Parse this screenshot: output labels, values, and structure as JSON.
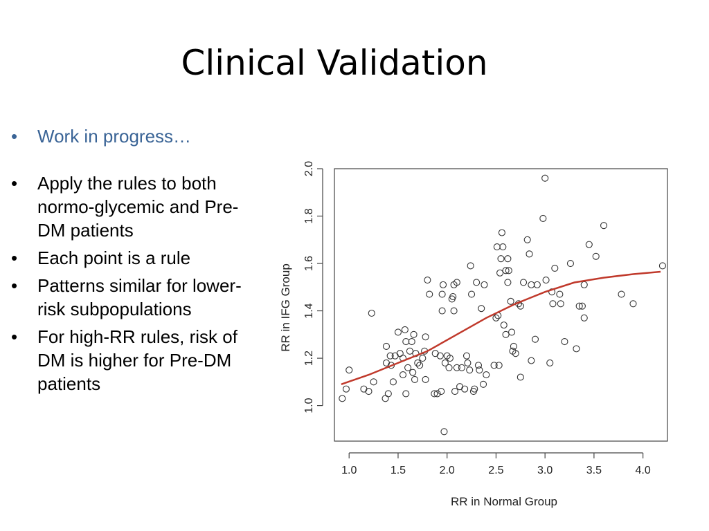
{
  "slide": {
    "title": "Clinical Validation",
    "bullets": [
      "Work in progress…",
      "Apply the rules to both normo-glycemic and Pre-DM patients",
      "Each point is a rule",
      "Patterns similar for lower-risk subpopulations",
      "For high-RR rules, risk of DM is higher for Pre-DM patients"
    ],
    "bullet_glyph": "•",
    "lead_color": "#3a6496"
  },
  "chart_data": {
    "type": "scatter",
    "title": "",
    "xlabel": "RR in Normal Group",
    "ylabel": "RR in IFG Group",
    "xlim": [
      0.85,
      4.25
    ],
    "ylim": [
      0.85,
      2.0
    ],
    "xticks": [
      "1.0",
      "1.5",
      "2.0",
      "2.5",
      "3.0",
      "3.5",
      "4.0"
    ],
    "yticks": [
      "1.0",
      "1.2",
      "1.4",
      "1.6",
      "1.8",
      "2.0"
    ],
    "grid": false,
    "point_color": "#333333",
    "curve_color": "#c0392b",
    "points": [
      [
        0.93,
        1.03
      ],
      [
        0.97,
        1.07
      ],
      [
        1.0,
        1.15
      ],
      [
        1.15,
        1.07
      ],
      [
        1.2,
        1.06
      ],
      [
        1.23,
        1.39
      ],
      [
        1.25,
        1.1
      ],
      [
        1.37,
        1.03
      ],
      [
        1.38,
        1.25
      ],
      [
        1.38,
        1.18
      ],
      [
        1.4,
        1.05
      ],
      [
        1.42,
        1.21
      ],
      [
        1.43,
        1.17
      ],
      [
        1.45,
        1.1
      ],
      [
        1.47,
        1.21
      ],
      [
        1.5,
        1.31
      ],
      [
        1.52,
        1.22
      ],
      [
        1.55,
        1.13
      ],
      [
        1.55,
        1.2
      ],
      [
        1.57,
        1.32
      ],
      [
        1.58,
        1.05
      ],
      [
        1.58,
        1.27
      ],
      [
        1.6,
        1.16
      ],
      [
        1.62,
        1.23
      ],
      [
        1.64,
        1.27
      ],
      [
        1.65,
        1.14
      ],
      [
        1.66,
        1.3
      ],
      [
        1.67,
        1.11
      ],
      [
        1.68,
        1.22
      ],
      [
        1.7,
        1.18
      ],
      [
        1.72,
        1.17
      ],
      [
        1.75,
        1.2
      ],
      [
        1.77,
        1.23
      ],
      [
        1.78,
        1.29
      ],
      [
        1.78,
        1.11
      ],
      [
        1.8,
        1.53
      ],
      [
        1.82,
        1.47
      ],
      [
        1.87,
        1.05
      ],
      [
        1.88,
        1.22
      ],
      [
        1.9,
        1.05
      ],
      [
        1.93,
        1.21
      ],
      [
        1.94,
        1.06
      ],
      [
        1.95,
        1.4
      ],
      [
        1.95,
        1.47
      ],
      [
        1.96,
        1.51
      ],
      [
        1.97,
        0.89
      ],
      [
        1.98,
        1.18
      ],
      [
        2.0,
        1.21
      ],
      [
        2.02,
        1.16
      ],
      [
        2.03,
        1.2
      ],
      [
        2.05,
        1.45
      ],
      [
        2.06,
        1.46
      ],
      [
        2.07,
        1.4
      ],
      [
        2.07,
        1.51
      ],
      [
        2.08,
        1.06
      ],
      [
        2.1,
        1.52
      ],
      [
        2.1,
        1.16
      ],
      [
        2.13,
        1.08
      ],
      [
        2.15,
        1.16
      ],
      [
        2.18,
        1.07
      ],
      [
        2.2,
        1.21
      ],
      [
        2.21,
        1.18
      ],
      [
        2.23,
        1.15
      ],
      [
        2.24,
        1.59
      ],
      [
        2.25,
        1.47
      ],
      [
        2.27,
        1.06
      ],
      [
        2.28,
        1.07
      ],
      [
        2.3,
        1.52
      ],
      [
        2.32,
        1.17
      ],
      [
        2.33,
        1.15
      ],
      [
        2.35,
        1.41
      ],
      [
        2.37,
        1.09
      ],
      [
        2.38,
        1.51
      ],
      [
        2.4,
        1.13
      ],
      [
        2.48,
        1.17
      ],
      [
        2.5,
        1.37
      ],
      [
        2.51,
        1.67
      ],
      [
        2.52,
        1.38
      ],
      [
        2.53,
        1.17
      ],
      [
        2.54,
        1.56
      ],
      [
        2.55,
        1.62
      ],
      [
        2.56,
        1.73
      ],
      [
        2.57,
        1.67
      ],
      [
        2.58,
        1.34
      ],
      [
        2.6,
        1.3
      ],
      [
        2.6,
        1.57
      ],
      [
        2.62,
        1.52
      ],
      [
        2.62,
        1.62
      ],
      [
        2.63,
        1.57
      ],
      [
        2.65,
        1.44
      ],
      [
        2.66,
        1.31
      ],
      [
        2.67,
        1.23
      ],
      [
        2.68,
        1.25
      ],
      [
        2.7,
        1.22
      ],
      [
        2.73,
        1.43
      ],
      [
        2.75,
        1.42
      ],
      [
        2.75,
        1.12
      ],
      [
        2.78,
        1.52
      ],
      [
        2.82,
        1.7
      ],
      [
        2.84,
        1.64
      ],
      [
        2.86,
        1.51
      ],
      [
        2.86,
        1.19
      ],
      [
        2.9,
        1.28
      ],
      [
        2.92,
        1.51
      ],
      [
        2.98,
        1.79
      ],
      [
        3.0,
        1.96
      ],
      [
        3.01,
        1.53
      ],
      [
        3.05,
        1.18
      ],
      [
        3.07,
        1.48
      ],
      [
        3.08,
        1.43
      ],
      [
        3.1,
        1.58
      ],
      [
        3.15,
        1.47
      ],
      [
        3.16,
        1.43
      ],
      [
        3.2,
        1.27
      ],
      [
        3.26,
        1.6
      ],
      [
        3.32,
        1.24
      ],
      [
        3.35,
        1.42
      ],
      [
        3.38,
        1.42
      ],
      [
        3.4,
        1.37
      ],
      [
        3.4,
        1.51
      ],
      [
        3.45,
        1.68
      ],
      [
        3.52,
        1.63
      ],
      [
        3.6,
        1.76
      ],
      [
        3.78,
        1.47
      ],
      [
        3.9,
        1.43
      ],
      [
        4.2,
        1.59
      ]
    ],
    "curve": [
      [
        0.92,
        1.09
      ],
      [
        1.2,
        1.13
      ],
      [
        1.5,
        1.18
      ],
      [
        1.8,
        1.23
      ],
      [
        2.1,
        1.3
      ],
      [
        2.4,
        1.37
      ],
      [
        2.7,
        1.43
      ],
      [
        3.0,
        1.48
      ],
      [
        3.3,
        1.52
      ],
      [
        3.6,
        1.54
      ],
      [
        3.9,
        1.555
      ],
      [
        4.18,
        1.565
      ]
    ]
  }
}
